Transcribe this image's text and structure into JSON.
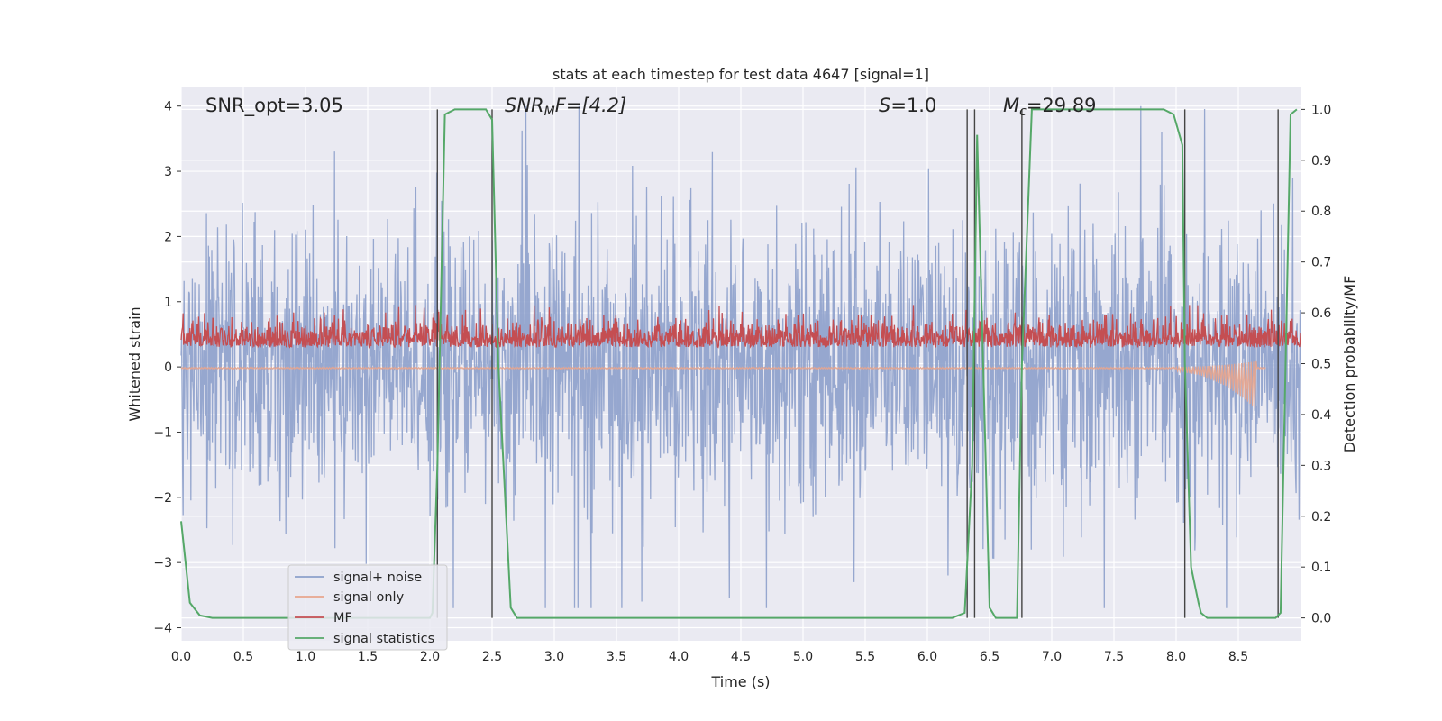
{
  "chart_data": {
    "type": "line",
    "title": "stats at each timestep for test data 4647 [signal=1]",
    "xlabel": "Time (s)",
    "ylabel_left": "Whitened strain",
    "ylabel_right": "Detection probability/MF",
    "xlim": [
      0,
      9.0
    ],
    "ylim_left": [
      -4.2,
      4.3
    ],
    "ylim_right": [
      -0.045,
      1.045
    ],
    "xticks": [
      "0.0",
      "0.5",
      "1.0",
      "1.5",
      "2.0",
      "2.5",
      "3.0",
      "3.5",
      "4.0",
      "4.5",
      "5.0",
      "5.5",
      "6.0",
      "6.5",
      "7.0",
      "7.5",
      "8.0",
      "8.5"
    ],
    "yticks_left": [
      "4",
      "3",
      "2",
      "1",
      "0",
      "−1",
      "−2",
      "−3",
      "−4"
    ],
    "yticks_right": [
      "1.0",
      "0.9",
      "0.8",
      "0.7",
      "0.6",
      "0.5",
      "0.4",
      "0.3",
      "0.2",
      "0.1",
      "0.0"
    ],
    "grid": true,
    "legend_placement": "lower-left",
    "series": [
      {
        "name": "signal+ noise",
        "color": "#8da0cb",
        "description_values": "noisy whitened strain, roughly within [-3.7, 4.0]"
      },
      {
        "name": "signal only",
        "color": "#e8a58d",
        "tail": {
          "x": [
            8.0,
            8.2,
            8.4,
            8.55,
            8.65
          ],
          "y": [
            -0.05,
            -0.12,
            -0.28,
            -0.48,
            -0.65
          ]
        }
      },
      {
        "name": "MF",
        "color": "#c44e52",
        "range": [
          0.0,
          0.9
        ]
      },
      {
        "name": "signal statistics",
        "color": "#55a868",
        "x": [
          0.0,
          0.07,
          0.15,
          0.25,
          1.0,
          2.0,
          2.02,
          2.06,
          2.12,
          2.2,
          2.45,
          2.5,
          2.55,
          2.65,
          2.7,
          3.0,
          6.0,
          6.2,
          6.3,
          6.36,
          6.4,
          6.5,
          6.55,
          6.62,
          6.65,
          6.72,
          6.76,
          6.84,
          6.88,
          7.0,
          7.9,
          7.98,
          8.05,
          8.07,
          8.12,
          8.18,
          8.2,
          8.25,
          8.5,
          8.8,
          8.84,
          8.92,
          8.97
        ],
        "y": [
          0.19,
          0.03,
          0.005,
          0.0,
          0.0,
          0.0,
          0.01,
          0.3,
          0.99,
          1.0,
          1.0,
          0.98,
          0.5,
          0.02,
          0.0,
          0.0,
          0.0,
          0.0,
          0.01,
          0.3,
          0.95,
          0.02,
          0.0,
          0.0,
          0.0,
          0.0,
          0.5,
          1.0,
          1.0,
          1.0,
          1.0,
          0.99,
          0.93,
          0.5,
          0.1,
          0.03,
          0.01,
          0.0,
          0.0,
          0.0,
          0.01,
          0.99,
          1.0
        ]
      }
    ],
    "vlines_x": [
      2.06,
      2.5,
      6.32,
      6.38,
      6.76,
      8.07,
      8.82
    ],
    "annotations": [
      "SNR_opt=3.05",
      "SNR",
      "M",
      "F=[4.2]",
      "S",
      "=1.0",
      "M",
      "c",
      "=29.89"
    ]
  },
  "legend": {
    "items": [
      {
        "label": "signal+ noise",
        "color": "#8da0cb"
      },
      {
        "label": "signal only",
        "color": "#e8a58d"
      },
      {
        "label": "MF",
        "color": "#c44e52"
      },
      {
        "label": "signal statistics",
        "color": "#55a868"
      }
    ]
  }
}
